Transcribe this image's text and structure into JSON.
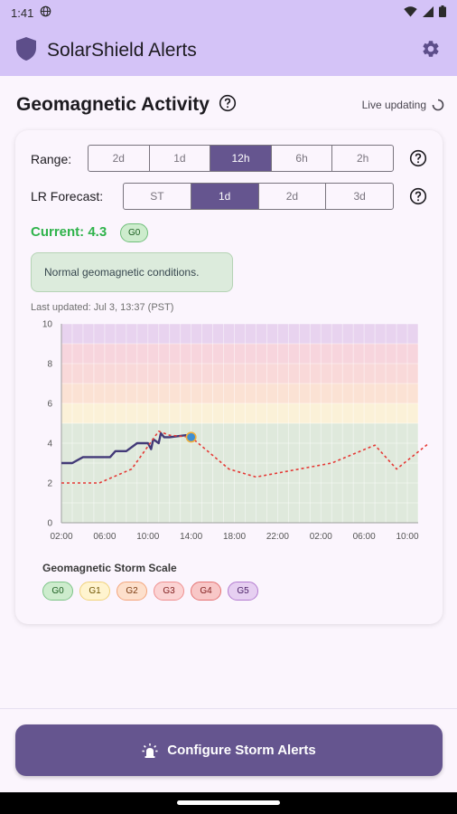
{
  "status_bar": {
    "time": "1:41"
  },
  "app_bar": {
    "title": "SolarShield Alerts"
  },
  "header": {
    "title": "Geomagnetic Activity",
    "live_label": "Live updating"
  },
  "range": {
    "label": "Range:",
    "options": [
      "2d",
      "1d",
      "12h",
      "6h",
      "2h"
    ],
    "selected": "12h"
  },
  "forecast": {
    "label": "LR Forecast:",
    "options": [
      "ST",
      "1d",
      "2d",
      "3d"
    ],
    "selected": "1d"
  },
  "current": {
    "text": "Current: 4.3",
    "badge": "G0"
  },
  "status_message": "Normal geomagnetic conditions.",
  "last_updated": "Last updated: Jul 3, 13:37 (PST)",
  "chart_data": {
    "type": "line",
    "y_ticks": [
      "0",
      "2",
      "4",
      "6",
      "8",
      "10"
    ],
    "x_ticks": [
      "02:00",
      "06:00",
      "10:00",
      "14:00",
      "18:00",
      "22:00",
      "02:00",
      "06:00",
      "10:00"
    ],
    "ylim": [
      0,
      10
    ],
    "x_range_hours": [
      2,
      35
    ],
    "grid": true,
    "bands": [
      {
        "from": 0,
        "to": 5,
        "level": "G0",
        "color": "#dfe9dc"
      },
      {
        "from": 5,
        "to": 6,
        "level": "G1",
        "color": "#fbf1d8"
      },
      {
        "from": 6,
        "to": 7,
        "level": "G2",
        "color": "#fbe2d4"
      },
      {
        "from": 7,
        "to": 8,
        "level": "G3",
        "color": "#f9d9d9"
      },
      {
        "from": 8,
        "to": 9,
        "level": "G4",
        "color": "#f7d5dd"
      },
      {
        "from": 9,
        "to": 10,
        "level": "G5",
        "color": "#e8d3ef"
      }
    ],
    "series": [
      {
        "style": "solid",
        "color": "#433a78",
        "points": [
          [
            2,
            3
          ],
          [
            3,
            3
          ],
          [
            4,
            3.3
          ],
          [
            6.5,
            3.3
          ],
          [
            7,
            3.6
          ],
          [
            8,
            3.6
          ],
          [
            9,
            4
          ],
          [
            10,
            4
          ],
          [
            10.3,
            3.7
          ],
          [
            10.5,
            4.2
          ],
          [
            11,
            4
          ],
          [
            11.2,
            4.5
          ],
          [
            11.5,
            4.3
          ],
          [
            12,
            4.3
          ],
          [
            13.5,
            4.4
          ],
          [
            14,
            4.3
          ]
        ]
      },
      {
        "style": "dashed",
        "color": "#e53935",
        "points": [
          [
            2,
            2
          ],
          [
            5.5,
            2
          ],
          [
            8.5,
            2.7
          ],
          [
            11,
            4.6
          ],
          [
            12,
            4.4
          ],
          [
            14,
            4.3
          ],
          [
            17.5,
            2.7
          ],
          [
            20,
            2.3
          ],
          [
            23,
            2.6
          ],
          [
            27,
            3
          ],
          [
            31,
            3.9
          ],
          [
            33,
            2.7
          ],
          [
            36,
            4
          ]
        ]
      }
    ],
    "current_point": {
      "x": 14,
      "y": 4.3,
      "color": "#3f8fd2"
    }
  },
  "storm_scale": {
    "title": "Geomagnetic Storm Scale",
    "levels": [
      {
        "label": "G0",
        "bg": "#cdeccd",
        "border": "#7cc487",
        "text": "#1b5e20"
      },
      {
        "label": "G1",
        "bg": "#fff4cf",
        "border": "#f0d27a",
        "text": "#6d5300"
      },
      {
        "label": "G2",
        "bg": "#fde0cc",
        "border": "#f3a57c",
        "text": "#7a3a10"
      },
      {
        "label": "G3",
        "bg": "#fbd3d3",
        "border": "#ef8f8f",
        "text": "#7f1d1d"
      },
      {
        "label": "G4",
        "bg": "#f8c7c7",
        "border": "#e57373",
        "text": "#7f1d1d"
      },
      {
        "label": "G5",
        "bg": "#e6cff1",
        "border": "#b37cd0",
        "text": "#4a2066"
      }
    ]
  },
  "cta": {
    "label": "Configure Storm Alerts"
  },
  "colors": {
    "accent": "#65558f",
    "app_bar": "#d4c3f7",
    "success": "#2fb34b"
  },
  "icons": {
    "app_logo": "shield-icon",
    "settings": "gear-icon",
    "help": "help-circle-icon",
    "loading": "spinner-icon",
    "alert": "siren-icon"
  }
}
